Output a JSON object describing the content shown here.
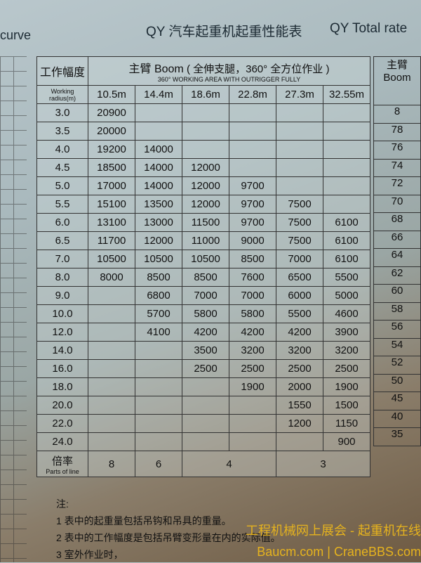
{
  "title_cn": "QY  汽车起重机起重性能表",
  "title_en": "QY  Total rate",
  "left_label": "curve",
  "header": {
    "radius_cn": "工作幅度",
    "radius_en": "Working radius(m)",
    "boom_cn": "主臂 Boom",
    "boom_note_cn": "( 全伸支腿，360° 全方位作业 )",
    "boom_note_en": "360° WORKING AREA WITH OUTRIGGER FULLY",
    "booms": [
      "10.5m",
      "14.4m",
      "18.6m",
      "22.8m",
      "27.3m",
      "32.55m"
    ]
  },
  "rows": [
    {
      "r": "3.0",
      "v": [
        "20900",
        "",
        "",
        "",
        "",
        ""
      ]
    },
    {
      "r": "3.5",
      "v": [
        "20000",
        "",
        "",
        "",
        "",
        ""
      ]
    },
    {
      "r": "4.0",
      "v": [
        "19200",
        "14000",
        "",
        "",
        "",
        ""
      ]
    },
    {
      "r": "4.5",
      "v": [
        "18500",
        "14000",
        "12000",
        "",
        "",
        ""
      ]
    },
    {
      "r": "5.0",
      "v": [
        "17000",
        "14000",
        "12000",
        "9700",
        "",
        ""
      ]
    },
    {
      "r": "5.5",
      "v": [
        "15100",
        "13500",
        "12000",
        "9700",
        "7500",
        ""
      ]
    },
    {
      "r": "6.0",
      "v": [
        "13100",
        "13000",
        "11500",
        "9700",
        "7500",
        "6100"
      ]
    },
    {
      "r": "6.5",
      "v": [
        "11700",
        "12000",
        "11000",
        "9000",
        "7500",
        "6100"
      ]
    },
    {
      "r": "7.0",
      "v": [
        "10500",
        "10500",
        "10500",
        "8500",
        "7000",
        "6100"
      ]
    },
    {
      "r": "8.0",
      "v": [
        "8000",
        "8500",
        "8500",
        "7600",
        "6500",
        "5500"
      ]
    },
    {
      "r": "9.0",
      "v": [
        "",
        "6800",
        "7000",
        "7000",
        "6000",
        "5000"
      ]
    },
    {
      "r": "10.0",
      "v": [
        "",
        "5700",
        "5800",
        "5800",
        "5500",
        "4600"
      ]
    },
    {
      "r": "12.0",
      "v": [
        "",
        "4100",
        "4200",
        "4200",
        "4200",
        "3900"
      ]
    },
    {
      "r": "14.0",
      "v": [
        "",
        "",
        "3500",
        "3200",
        "3200",
        "3200"
      ]
    },
    {
      "r": "16.0",
      "v": [
        "",
        "",
        "2500",
        "2500",
        "2500",
        "2500"
      ]
    },
    {
      "r": "18.0",
      "v": [
        "",
        "",
        "",
        "1900",
        "2000",
        "1900"
      ]
    },
    {
      "r": "20.0",
      "v": [
        "",
        "",
        "",
        "",
        "1550",
        "1500"
      ]
    },
    {
      "r": "22.0",
      "v": [
        "",
        "",
        "",
        "",
        "1200",
        "1150"
      ]
    },
    {
      "r": "24.0",
      "v": [
        "",
        "",
        "",
        "",
        "",
        "900"
      ]
    }
  ],
  "parts": {
    "cn": "倍率",
    "en": "Parts of line",
    "values": [
      "8",
      "6",
      "4",
      "3"
    ]
  },
  "right_column": {
    "header": "主臂 Boom",
    "values": [
      "8",
      "78",
      "76",
      "74",
      "72",
      "70",
      "68",
      "66",
      "64",
      "62",
      "60",
      "58",
      "56",
      "54",
      "52",
      "50",
      "45",
      "40",
      "35"
    ]
  },
  "notes": {
    "title": "注:",
    "items": [
      "1  表中的起重量包括吊钩和吊具的重量。",
      "2  表中的工作幅度是包括吊臂变形量在内的实际值。",
      "3  室外作业时，"
    ]
  },
  "watermark": {
    "line1": "工程机械网上展会 - 起重机在线",
    "line2": "Baucm.com | CraneBBS.com"
  }
}
